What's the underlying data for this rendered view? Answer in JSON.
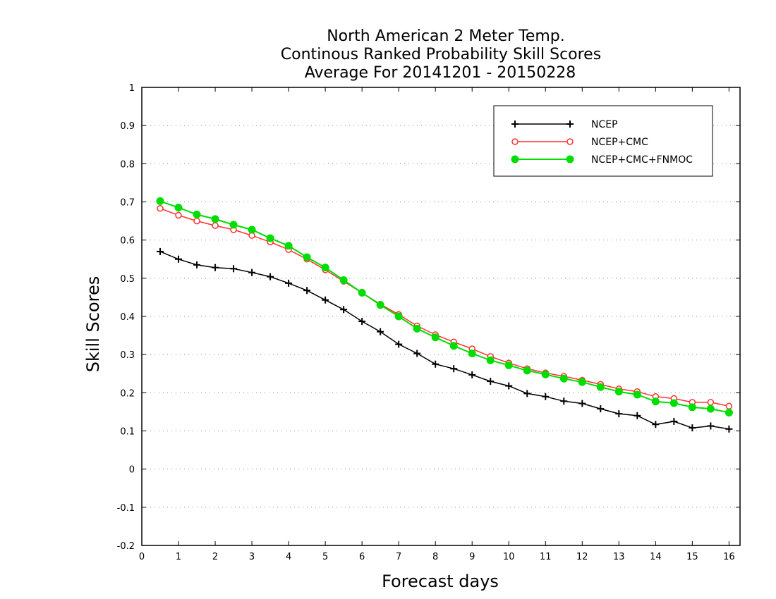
{
  "chart_data": {
    "type": "line",
    "title_lines": [
      "North American 2 Meter Temp.",
      "Continous Ranked Probability Skill Scores",
      "Average For 20141201 - 20150228"
    ],
    "xlabel": "Forecast days",
    "ylabel": "Skill Scores",
    "xlim": [
      0,
      16.3
    ],
    "ylim": [
      -0.2,
      1
    ],
    "x_ticks": [
      0,
      1,
      2,
      3,
      4,
      5,
      6,
      7,
      8,
      9,
      10,
      11,
      12,
      13,
      14,
      15,
      16
    ],
    "y_ticks": [
      -0.2,
      -0.1,
      0,
      0.1,
      0.2,
      0.3,
      0.4,
      0.5,
      0.6,
      0.7,
      0.8,
      0.9,
      1
    ],
    "y_tick_labels": [
      "-0.2",
      "-0.1",
      "0",
      "0.1",
      "0.2",
      "0.3",
      "0.4",
      "0.5",
      "0.6",
      "0.7",
      "0.8",
      "0.9",
      "1"
    ],
    "grid": "horizontal-dotted",
    "legend_position": "top-right",
    "x": [
      0.5,
      1,
      1.5,
      2,
      2.5,
      3,
      3.5,
      4,
      4.5,
      5,
      5.5,
      6,
      6.5,
      7,
      7.5,
      8,
      8.5,
      9,
      9.5,
      10,
      10.5,
      11,
      11.5,
      12,
      12.5,
      13,
      13.5,
      14,
      14.5,
      15,
      15.5,
      16
    ],
    "series": [
      {
        "name": "NCEP",
        "color": "#000000",
        "marker": "plus",
        "values": [
          0.57,
          0.55,
          0.535,
          0.528,
          0.525,
          0.515,
          0.504,
          0.487,
          0.468,
          0.443,
          0.418,
          0.387,
          0.36,
          0.327,
          0.303,
          0.275,
          0.263,
          0.247,
          0.23,
          0.218,
          0.198,
          0.19,
          0.178,
          0.172,
          0.158,
          0.145,
          0.14,
          0.117,
          0.125,
          0.108,
          0.113,
          0.105
        ]
      },
      {
        "name": "NCEP+CMC",
        "color": "#ff3030",
        "marker": "open-circle",
        "values": [
          0.683,
          0.665,
          0.65,
          0.638,
          0.627,
          0.612,
          0.595,
          0.575,
          0.55,
          0.522,
          0.492,
          0.462,
          0.432,
          0.405,
          0.375,
          0.352,
          0.333,
          0.315,
          0.295,
          0.278,
          0.263,
          0.252,
          0.243,
          0.233,
          0.222,
          0.21,
          0.203,
          0.19,
          0.185,
          0.175,
          0.175,
          0.165
        ]
      },
      {
        "name": "NCEP+CMC+FNMOC",
        "color": "#00dd00",
        "marker": "filled-circle",
        "values": [
          0.702,
          0.685,
          0.667,
          0.655,
          0.64,
          0.627,
          0.605,
          0.585,
          0.555,
          0.528,
          0.495,
          0.462,
          0.43,
          0.4,
          0.368,
          0.345,
          0.323,
          0.303,
          0.285,
          0.272,
          0.258,
          0.248,
          0.237,
          0.228,
          0.215,
          0.203,
          0.195,
          0.177,
          0.173,
          0.162,
          0.158,
          0.148
        ]
      }
    ]
  }
}
